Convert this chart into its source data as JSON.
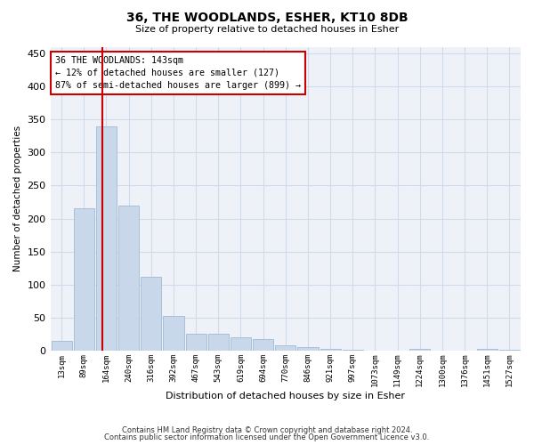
{
  "title": "36, THE WOODLANDS, ESHER, KT10 8DB",
  "subtitle": "Size of property relative to detached houses in Esher",
  "xlabel": "Distribution of detached houses by size in Esher",
  "ylabel": "Number of detached properties",
  "bar_labels": [
    "13sqm",
    "89sqm",
    "164sqm",
    "240sqm",
    "316sqm",
    "392sqm",
    "467sqm",
    "543sqm",
    "619sqm",
    "694sqm",
    "770sqm",
    "846sqm",
    "921sqm",
    "997sqm",
    "1073sqm",
    "1149sqm",
    "1224sqm",
    "1300sqm",
    "1376sqm",
    "1451sqm",
    "1527sqm"
  ],
  "bar_values": [
    15,
    215,
    340,
    220,
    112,
    53,
    25,
    25,
    20,
    17,
    8,
    6,
    3,
    2,
    0,
    0,
    3,
    0,
    0,
    3,
    2
  ],
  "bar_color": "#c8d8ea",
  "bar_edge_color": "#a8c0d8",
  "grid_color": "#d0daea",
  "vline_color": "#cc0000",
  "annotation_line1": "36 THE WOODLANDS: 143sqm",
  "annotation_line2": "← 12% of detached houses are smaller (127)",
  "annotation_line3": "87% of semi-detached houses are larger (899) →",
  "annotation_box_color": "#ffffff",
  "annotation_box_edge": "#cc0000",
  "ylim": [
    0,
    460
  ],
  "yticks": [
    0,
    50,
    100,
    150,
    200,
    250,
    300,
    350,
    400,
    450
  ],
  "footer1": "Contains HM Land Registry data © Crown copyright and database right 2024.",
  "footer2": "Contains public sector information licensed under the Open Government Licence v3.0.",
  "background_color": "#eef2f8",
  "fig_width": 6.0,
  "fig_height": 5.0,
  "dpi": 100
}
